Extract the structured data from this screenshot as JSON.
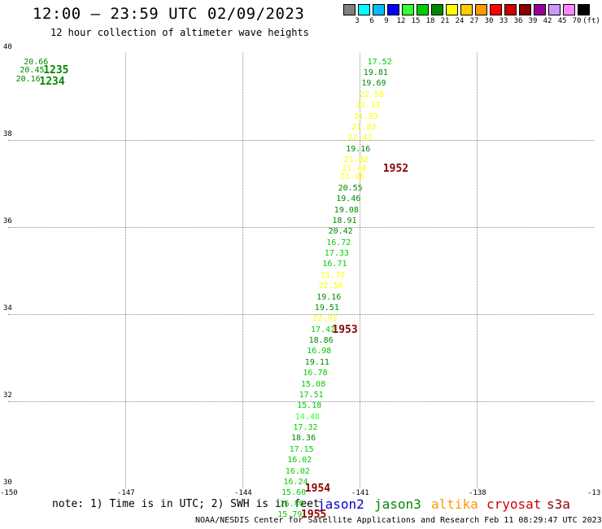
{
  "title": "12:00 – 23:59 UTC 02/09/2023",
  "subtitle": "12 hour collection of altimeter wave heights",
  "scale": {
    "colors": [
      "#808080",
      "#00ffff",
      "#00bfff",
      "#0000ff",
      "#33ff33",
      "#00cc00",
      "#008800",
      "#ffff00",
      "#ffcc00",
      "#ff9900",
      "#ff0000",
      "#cc0000",
      "#880000",
      "#990099",
      "#cc99ff",
      "#ff88ff",
      "#000000"
    ],
    "labels": [
      "3",
      "6",
      "9",
      "12",
      "15",
      "18",
      "21",
      "24",
      "27",
      "30",
      "33",
      "36",
      "39",
      "42",
      "45",
      "70",
      "(ft)"
    ]
  },
  "axes": {
    "y_labels": [
      "40",
      "38",
      "36",
      "34",
      "32",
      "30"
    ],
    "x_labels": [
      "-150",
      "-147",
      "-144",
      "-141",
      "-138",
      "-13"
    ]
  },
  "chart_data": {
    "type": "scatter",
    "xlim": [
      -150,
      -135
    ],
    "ylim": [
      30,
      40
    ],
    "points": [
      {
        "lon": -149.6,
        "lat": 39.8,
        "v": "20.66",
        "c": "#008800"
      },
      {
        "lon": -149.7,
        "lat": 39.6,
        "v": "20.45",
        "c": "#008800"
      },
      {
        "lon": -149.8,
        "lat": 39.4,
        "v": "20.16",
        "c": "#008800"
      },
      {
        "lon": -140.8,
        "lat": 39.8,
        "v": "17.52",
        "c": "#00cc00"
      },
      {
        "lon": -140.9,
        "lat": 39.55,
        "v": "19.81",
        "c": "#008800"
      },
      {
        "lon": -140.95,
        "lat": 39.3,
        "v": "19.69",
        "c": "#008800"
      },
      {
        "lon": -141.0,
        "lat": 39.05,
        "v": "22.58",
        "c": "#ffff00"
      },
      {
        "lon": -141.1,
        "lat": 38.8,
        "v": "23.13",
        "c": "#ffff00"
      },
      {
        "lon": -141.15,
        "lat": 38.55,
        "v": "21.93",
        "c": "#ffff00"
      },
      {
        "lon": -141.2,
        "lat": 38.3,
        "v": "21.83",
        "c": "#ffff00"
      },
      {
        "lon": -141.3,
        "lat": 38.05,
        "v": "22.47",
        "c": "#ffff00"
      },
      {
        "lon": -141.35,
        "lat": 37.8,
        "v": "19.16",
        "c": "#008800"
      },
      {
        "lon": -141.4,
        "lat": 37.55,
        "v": "21.82",
        "c": "#ffff00"
      },
      {
        "lon": -141.45,
        "lat": 37.35,
        "v": "21.48",
        "c": "#ffff00"
      },
      {
        "lon": -141.5,
        "lat": 37.15,
        "v": "21.06",
        "c": "#ffff00"
      },
      {
        "lon": -141.55,
        "lat": 36.9,
        "v": "20.55",
        "c": "#008800"
      },
      {
        "lon": -141.6,
        "lat": 36.65,
        "v": "19.46",
        "c": "#008800"
      },
      {
        "lon": -141.65,
        "lat": 36.4,
        "v": "19.08",
        "c": "#008800"
      },
      {
        "lon": -141.7,
        "lat": 36.15,
        "v": "18.91",
        "c": "#008800"
      },
      {
        "lon": -141.8,
        "lat": 35.9,
        "v": "20.42",
        "c": "#008800"
      },
      {
        "lon": -141.85,
        "lat": 35.65,
        "v": "16.72",
        "c": "#00cc00"
      },
      {
        "lon": -141.9,
        "lat": 35.4,
        "v": "17.33",
        "c": "#00cc00"
      },
      {
        "lon": -141.95,
        "lat": 35.15,
        "v": "16.71",
        "c": "#00cc00"
      },
      {
        "lon": -142.0,
        "lat": 34.9,
        "v": "21.72",
        "c": "#ffff00"
      },
      {
        "lon": -142.05,
        "lat": 34.65,
        "v": "22.56",
        "c": "#ffff00"
      },
      {
        "lon": -142.1,
        "lat": 34.4,
        "v": "19.16",
        "c": "#008800"
      },
      {
        "lon": -142.15,
        "lat": 34.15,
        "v": "19.51",
        "c": "#008800"
      },
      {
        "lon": -142.2,
        "lat": 33.9,
        "v": "22.03",
        "c": "#ffff00"
      },
      {
        "lon": -142.25,
        "lat": 33.65,
        "v": "17.42",
        "c": "#00cc00"
      },
      {
        "lon": -142.3,
        "lat": 33.4,
        "v": "18.86",
        "c": "#008800"
      },
      {
        "lon": -142.35,
        "lat": 33.15,
        "v": "16.98",
        "c": "#00cc00"
      },
      {
        "lon": -142.4,
        "lat": 32.9,
        "v": "19.11",
        "c": "#008800"
      },
      {
        "lon": -142.45,
        "lat": 32.65,
        "v": "16.78",
        "c": "#00cc00"
      },
      {
        "lon": -142.5,
        "lat": 32.4,
        "v": "15.08",
        "c": "#00cc00"
      },
      {
        "lon": -142.55,
        "lat": 32.15,
        "v": "17.51",
        "c": "#00cc00"
      },
      {
        "lon": -142.6,
        "lat": 31.9,
        "v": "15.18",
        "c": "#00cc00"
      },
      {
        "lon": -142.65,
        "lat": 31.65,
        "v": "14.48",
        "c": "#33ff33"
      },
      {
        "lon": -142.7,
        "lat": 31.4,
        "v": "17.32",
        "c": "#00cc00"
      },
      {
        "lon": -142.75,
        "lat": 31.15,
        "v": "18.36",
        "c": "#008800"
      },
      {
        "lon": -142.8,
        "lat": 30.9,
        "v": "17.15",
        "c": "#00cc00"
      },
      {
        "lon": -142.85,
        "lat": 30.65,
        "v": "16.02",
        "c": "#00cc00"
      },
      {
        "lon": -142.9,
        "lat": 30.4,
        "v": "16.02",
        "c": "#00cc00"
      },
      {
        "lon": -142.95,
        "lat": 30.15,
        "v": "16.24",
        "c": "#00cc00"
      },
      {
        "lon": -143.0,
        "lat": 29.9,
        "v": "15.60",
        "c": "#00cc00"
      },
      {
        "lon": -143.05,
        "lat": 29.65,
        "v": "16.40",
        "c": "#00cc00"
      },
      {
        "lon": -143.1,
        "lat": 29.4,
        "v": "15.79",
        "c": "#00cc00"
      }
    ],
    "times": [
      {
        "lon": -149.1,
        "lat": 39.6,
        "v": "1235",
        "c": "#008800"
      },
      {
        "lon": -149.2,
        "lat": 39.35,
        "v": "1234",
        "c": "#008800"
      },
      {
        "lon": -140.4,
        "lat": 37.35,
        "v": "1952",
        "c": "#8b0000"
      },
      {
        "lon": -141.7,
        "lat": 33.65,
        "v": "1953",
        "c": "#8b0000"
      },
      {
        "lon": -142.4,
        "lat": 30.0,
        "v": "1954",
        "c": "#8b0000"
      },
      {
        "lon": -142.5,
        "lat": 29.4,
        "v": "1955",
        "c": "#8b0000"
      }
    ]
  },
  "note": "note: 1) Time is in UTC; 2) SWH is in feet",
  "satellites": [
    {
      "name": "jason2",
      "color": "#0000cc"
    },
    {
      "name": "jason3",
      "color": "#008800"
    },
    {
      "name": "altika",
      "color": "#ff9900"
    },
    {
      "name": "cryosat",
      "color": "#cc0000"
    },
    {
      "name": "s3a",
      "color": "#8b0000"
    }
  ],
  "footer": "NOAA/NESDIS Center for Satellite Applications and Research   Feb 11 08:29:47 UTC 2023"
}
